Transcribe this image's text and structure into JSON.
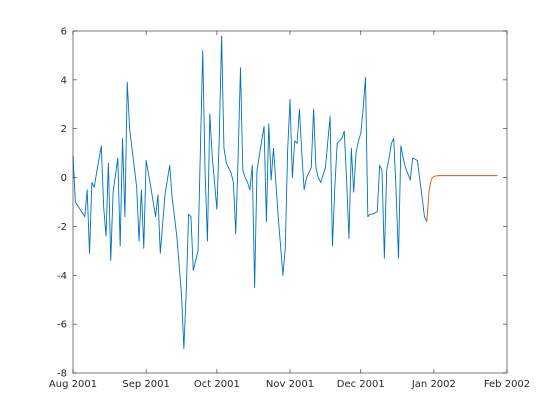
{
  "chart_data": {
    "type": "line",
    "title": "",
    "xlabel": "",
    "ylabel": "",
    "xlim": [
      "2001-08-01",
      "2002-02-01"
    ],
    "ylim": [
      -8,
      6
    ],
    "grid": false,
    "legend": "none",
    "x_ticks": [
      {
        "date": "2001-08-01",
        "label": "Aug 2001"
      },
      {
        "date": "2001-09-01",
        "label": "Sep 2001"
      },
      {
        "date": "2001-10-01",
        "label": "Oct 2001"
      },
      {
        "date": "2001-11-01",
        "label": "Nov 2001"
      },
      {
        "date": "2001-12-01",
        "label": "Dec 2001"
      },
      {
        "date": "2002-01-01",
        "label": "Jan 2002"
      },
      {
        "date": "2002-02-01",
        "label": "Feb 2002"
      }
    ],
    "y_ticks": [
      -8,
      -6,
      -4,
      -2,
      0,
      2,
      4,
      6
    ],
    "series": [
      {
        "color": "#0072BD",
        "points": [
          [
            "2001-08-01",
            0.9
          ],
          [
            "2001-08-02",
            -1.0
          ],
          [
            "2001-08-04",
            -1.3
          ],
          [
            "2001-08-06",
            -1.6
          ],
          [
            "2001-08-07",
            -0.5
          ],
          [
            "2001-08-08",
            -3.1
          ],
          [
            "2001-08-09",
            -0.2
          ],
          [
            "2001-08-10",
            -0.4
          ],
          [
            "2001-08-11",
            0.2
          ],
          [
            "2001-08-13",
            1.3
          ],
          [
            "2001-08-14",
            -1.2
          ],
          [
            "2001-08-15",
            -2.4
          ],
          [
            "2001-08-16",
            0.6
          ],
          [
            "2001-08-17",
            -3.4
          ],
          [
            "2001-08-18",
            -0.6
          ],
          [
            "2001-08-20",
            0.8
          ],
          [
            "2001-08-21",
            -2.8
          ],
          [
            "2001-08-22",
            1.6
          ],
          [
            "2001-08-23",
            -1.6
          ],
          [
            "2001-08-24",
            3.9
          ],
          [
            "2001-08-25",
            2.0
          ],
          [
            "2001-08-27",
            0.4
          ],
          [
            "2001-08-28",
            -0.4
          ],
          [
            "2001-08-29",
            -2.6
          ],
          [
            "2001-08-30",
            -0.5
          ],
          [
            "2001-08-31",
            -2.9
          ],
          [
            "2001-09-01",
            0.7
          ],
          [
            "2001-09-03",
            -0.4
          ],
          [
            "2001-09-05",
            -1.6
          ],
          [
            "2001-09-06",
            -0.7
          ],
          [
            "2001-09-07",
            -3.1
          ],
          [
            "2001-09-09",
            -0.7
          ],
          [
            "2001-09-11",
            0.5
          ],
          [
            "2001-09-12",
            -0.8
          ],
          [
            "2001-09-14",
            -2.4
          ],
          [
            "2001-09-16",
            -4.8
          ],
          [
            "2001-09-17",
            -7.0
          ],
          [
            "2001-09-18",
            -4.7
          ],
          [
            "2001-09-19",
            -1.5
          ],
          [
            "2001-09-20",
            -1.6
          ],
          [
            "2001-09-21",
            -3.8
          ],
          [
            "2001-09-23",
            -3.0
          ],
          [
            "2001-09-25",
            5.2
          ],
          [
            "2001-09-26",
            0.2
          ],
          [
            "2001-09-27",
            -2.6
          ],
          [
            "2001-09-28",
            2.6
          ],
          [
            "2001-09-29",
            0.9
          ],
          [
            "2001-10-01",
            -1.3
          ],
          [
            "2001-10-02",
            1.6
          ],
          [
            "2001-10-03",
            5.8
          ],
          [
            "2001-10-04",
            1.2
          ],
          [
            "2001-10-05",
            0.6
          ],
          [
            "2001-10-07",
            0.2
          ],
          [
            "2001-10-08",
            -0.2
          ],
          [
            "2001-10-09",
            -2.3
          ],
          [
            "2001-10-10",
            0.8
          ],
          [
            "2001-10-11",
            4.5
          ],
          [
            "2001-10-12",
            0.3
          ],
          [
            "2001-10-13",
            0.0
          ],
          [
            "2001-10-14",
            -0.2
          ],
          [
            "2001-10-15",
            -0.5
          ],
          [
            "2001-10-16",
            0.5
          ],
          [
            "2001-10-17",
            -4.5
          ],
          [
            "2001-10-18",
            0.3
          ],
          [
            "2001-10-20",
            1.5
          ],
          [
            "2001-10-21",
            2.1
          ],
          [
            "2001-10-22",
            -1.8
          ],
          [
            "2001-10-23",
            2.2
          ],
          [
            "2001-10-24",
            -0.1
          ],
          [
            "2001-10-25",
            1.2
          ],
          [
            "2001-10-27",
            -1.6
          ],
          [
            "2001-10-28",
            -2.8
          ],
          [
            "2001-10-29",
            -4.0
          ],
          [
            "2001-10-30",
            -2.9
          ],
          [
            "2001-10-31",
            1.1
          ],
          [
            "2001-11-01",
            3.2
          ],
          [
            "2001-11-02",
            0.0
          ],
          [
            "2001-11-03",
            1.5
          ],
          [
            "2001-11-04",
            1.4
          ],
          [
            "2001-11-05",
            2.8
          ],
          [
            "2001-11-06",
            1.0
          ],
          [
            "2001-11-07",
            -0.5
          ],
          [
            "2001-11-08",
            0.0
          ],
          [
            "2001-11-10",
            0.4
          ],
          [
            "2001-11-11",
            2.8
          ],
          [
            "2001-11-12",
            0.4
          ],
          [
            "2001-11-13",
            0.0
          ],
          [
            "2001-11-14",
            -0.2
          ],
          [
            "2001-11-16",
            0.4
          ],
          [
            "2001-11-18",
            2.5
          ],
          [
            "2001-11-19",
            -2.8
          ],
          [
            "2001-11-20",
            -0.4
          ],
          [
            "2001-11-21",
            1.4
          ],
          [
            "2001-11-23",
            1.6
          ],
          [
            "2001-11-24",
            1.9
          ],
          [
            "2001-11-25",
            -0.1
          ],
          [
            "2001-11-26",
            -2.5
          ],
          [
            "2001-11-27",
            1.2
          ],
          [
            "2001-11-28",
            -0.6
          ],
          [
            "2001-11-29",
            1.0
          ],
          [
            "2001-11-30",
            1.5
          ],
          [
            "2001-12-01",
            1.8
          ],
          [
            "2001-12-02",
            2.8
          ],
          [
            "2001-12-03",
            4.1
          ],
          [
            "2001-12-04",
            -1.6
          ],
          [
            "2001-12-05",
            -1.5
          ],
          [
            "2001-12-06",
            -1.5
          ],
          [
            "2001-12-08",
            -1.4
          ],
          [
            "2001-12-09",
            0.5
          ],
          [
            "2001-12-10",
            0.3
          ],
          [
            "2001-12-11",
            -3.3
          ],
          [
            "2001-12-12",
            0.3
          ],
          [
            "2001-12-13",
            0.8
          ],
          [
            "2001-12-14",
            1.4
          ],
          [
            "2001-12-15",
            1.6
          ],
          [
            "2001-12-16",
            -0.6
          ],
          [
            "2001-12-17",
            -3.3
          ],
          [
            "2001-12-18",
            1.3
          ],
          [
            "2001-12-19",
            0.8
          ],
          [
            "2001-12-20",
            0.4
          ],
          [
            "2001-12-22",
            -0.1
          ],
          [
            "2001-12-23",
            0.8
          ],
          [
            "2001-12-25",
            0.7
          ],
          [
            "2001-12-27",
            -0.8
          ],
          [
            "2001-12-28",
            -1.6
          ],
          [
            "2001-12-29",
            -1.8
          ]
        ]
      },
      {
        "color": "#D95319",
        "points": [
          [
            "2001-12-29",
            -1.8
          ],
          [
            "2001-12-30",
            -0.5
          ],
          [
            "2001-12-31",
            -0.05
          ],
          [
            "2002-01-01",
            0.05
          ],
          [
            "2002-01-03",
            0.08
          ],
          [
            "2002-01-10",
            0.08
          ],
          [
            "2002-01-20",
            0.08
          ],
          [
            "2002-01-28",
            0.08
          ]
        ]
      }
    ]
  }
}
